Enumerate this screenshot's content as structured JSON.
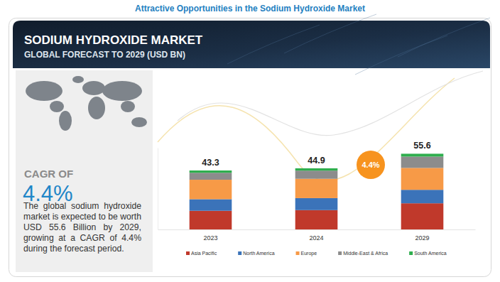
{
  "page_title": "Attractive Opportunities in the Sodium Hydroxide Market",
  "sidebar": {
    "cagr_label": "CAGR OF",
    "cagr": "4.4%",
    "description": "The global sodium hydroxide market is expected to be worth USD 55.6 Billion by 2029, growing at a CAGR of 4.4% during the forecast period."
  },
  "chart_data": {
    "type": "bar",
    "stacked": true,
    "title": "SODIUM HYDROXIDE MARKET",
    "subtitle": "GLOBAL FORECAST TO 2029 (USD BN)",
    "categories": [
      "2023",
      "2024",
      "2029"
    ],
    "series": [
      {
        "name": "Asia Pacific",
        "color": "#c0392b",
        "values": [
          13.7,
          14.2,
          19.2
        ]
      },
      {
        "name": "North America",
        "color": "#3b73b9",
        "values": [
          8.5,
          8.8,
          9.9
        ]
      },
      {
        "name": "Europe",
        "color": "#f79a47",
        "values": [
          14.3,
          14.2,
          16.1
        ]
      },
      {
        "name": "Middle-East & Africa",
        "color": "#8c8c8c",
        "values": [
          5.1,
          6.0,
          8.3
        ]
      },
      {
        "name": "South America",
        "color": "#2fae4e",
        "values": [
          1.7,
          1.7,
          2.1
        ]
      }
    ],
    "totals": [
      43.3,
      44.9,
      55.6
    ],
    "ylim": [
      0,
      60
    ],
    "tick_labels": "x",
    "legend": "bottom",
    "annotations": [
      {
        "text": "4.4%"
      }
    ]
  }
}
